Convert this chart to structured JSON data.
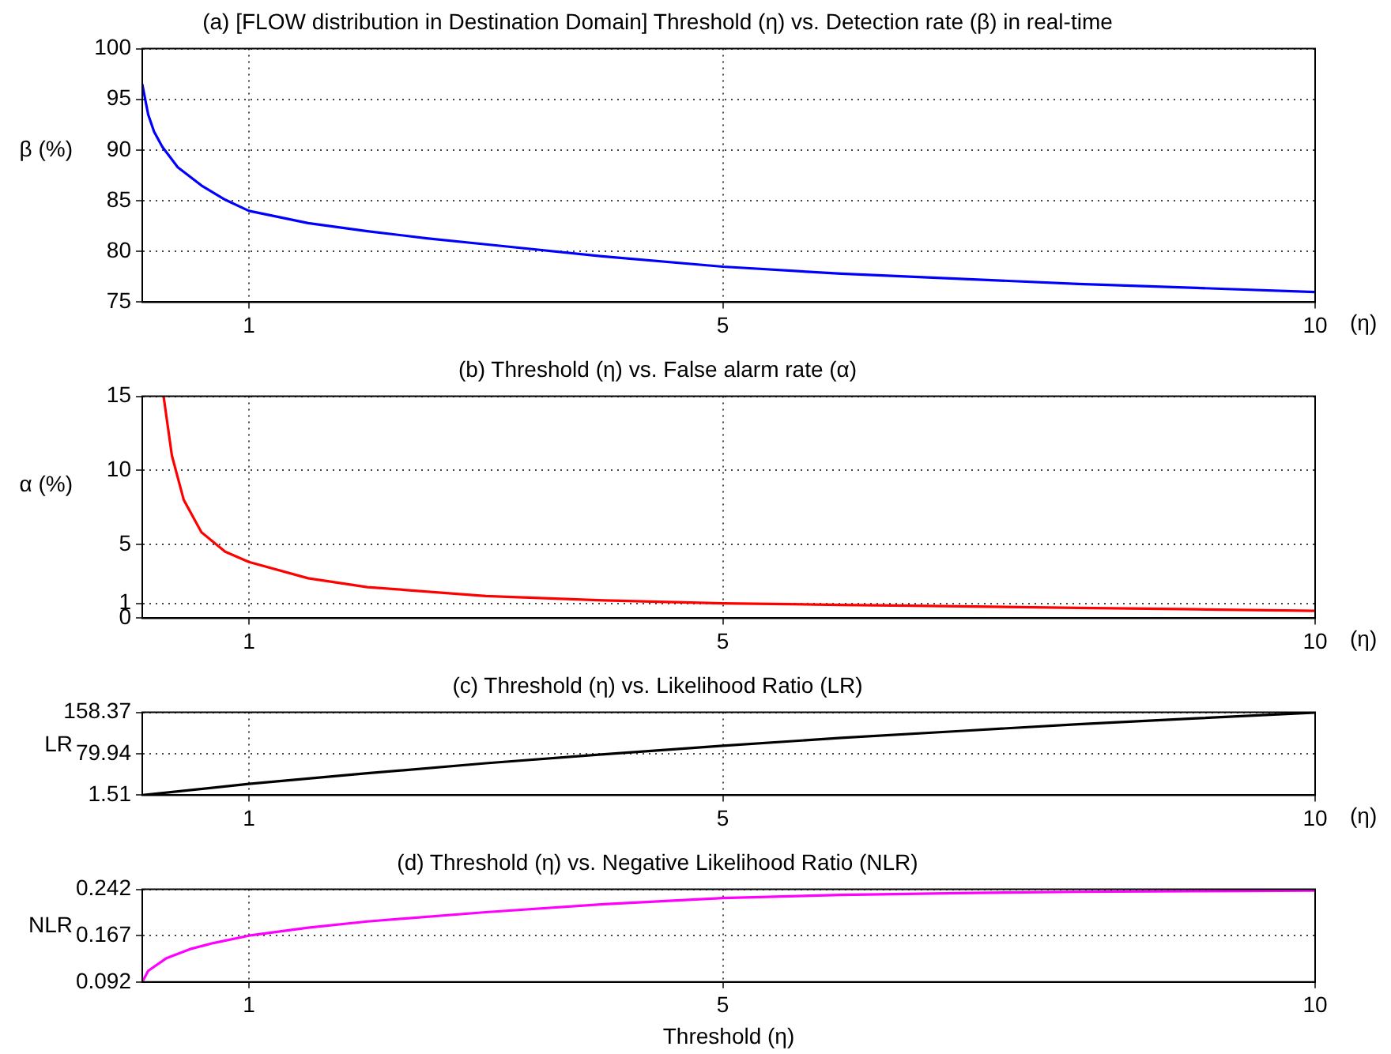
{
  "chart_data": [
    {
      "type": "line",
      "title": "(a) [FLOW distribution in Destination Domain] Threshold (η) vs. Detection rate (β) in real-time",
      "xlabel": "(η)",
      "ylabel": "β (%)",
      "xlim": [
        0.1,
        10
      ],
      "xticks": [
        1,
        5,
        10
      ],
      "ylim": [
        75,
        100
      ],
      "yticks": [
        75,
        80,
        85,
        90,
        95,
        100
      ],
      "grid": true,
      "marker": "none",
      "line_style": "solid",
      "series": [
        {
          "color": "#0000ff",
          "x": [
            0.1,
            0.15,
            0.2,
            0.27,
            0.4,
            0.6,
            0.8,
            1,
            1.5,
            2,
            2.5,
            3,
            4,
            5,
            6,
            7,
            8,
            9,
            10
          ],
          "values": [
            96.5,
            93.5,
            91.8,
            90.3,
            88.3,
            86.5,
            85.1,
            84,
            82.8,
            82,
            81.3,
            80.7,
            79.5,
            78.5,
            77.8,
            77.3,
            76.8,
            76.4,
            76
          ]
        }
      ]
    },
    {
      "type": "line",
      "title": "(b) Threshold (η) vs. False alarm rate (α)",
      "xlabel": "(η)",
      "ylabel": "α (%)",
      "xlim": [
        0.1,
        10
      ],
      "xticks": [
        1,
        5,
        10
      ],
      "ylim": [
        0,
        15
      ],
      "yticks": [
        0,
        1,
        5,
        10,
        15
      ],
      "grid": true,
      "marker": "none",
      "line_style": "solid",
      "series": [
        {
          "color": "#ff0000",
          "x": [
            0.28,
            0.35,
            0.45,
            0.6,
            0.8,
            1,
            1.5,
            2,
            3,
            4,
            5,
            6,
            7,
            8,
            9,
            10
          ],
          "values": [
            15,
            11,
            8,
            5.8,
            4.5,
            3.8,
            2.7,
            2.1,
            1.5,
            1.2,
            1,
            0.9,
            0.8,
            0.7,
            0.6,
            0.5
          ]
        }
      ]
    },
    {
      "type": "line",
      "title": "(c) Threshold (η) vs. Likelihood Ratio (LR)",
      "xlabel": "(η)",
      "ylabel": "LR",
      "xlim": [
        0.1,
        10
      ],
      "xticks": [
        1,
        5,
        10
      ],
      "ylim": [
        1.51,
        158.37
      ],
      "yticks": [
        1.51,
        79.94,
        158.37
      ],
      "grid": true,
      "marker": "none",
      "line_style": "solid",
      "series": [
        {
          "color": "#000000",
          "x": [
            0.1,
            1,
            2,
            3,
            4,
            5,
            6,
            7,
            8,
            9,
            10
          ],
          "values": [
            1.51,
            23,
            43,
            62,
            79,
            95,
            110,
            123,
            136,
            147,
            158
          ]
        }
      ]
    },
    {
      "type": "line",
      "title": "(d) Threshold (η) vs. Negative Likelihood Ratio (NLR)",
      "xlabel": "Threshold (η)",
      "ylabel": "NLR",
      "xlim": [
        0.1,
        10
      ],
      "xticks": [
        1,
        5,
        10
      ],
      "ylim": [
        0.092,
        0.242
      ],
      "yticks": [
        0.092,
        0.167,
        0.242
      ],
      "grid": true,
      "marker": "none",
      "line_style": "solid",
      "series": [
        {
          "color": "#ff00ff",
          "x": [
            0.1,
            0.15,
            0.3,
            0.5,
            0.7,
            1,
            1.5,
            2,
            3,
            4,
            5,
            6,
            7,
            8,
            9,
            10
          ],
          "values": [
            0.092,
            0.11,
            0.13,
            0.145,
            0.155,
            0.167,
            0.18,
            0.19,
            0.205,
            0.218,
            0.228,
            0.233,
            0.236,
            0.238,
            0.239,
            0.24
          ]
        }
      ]
    }
  ]
}
